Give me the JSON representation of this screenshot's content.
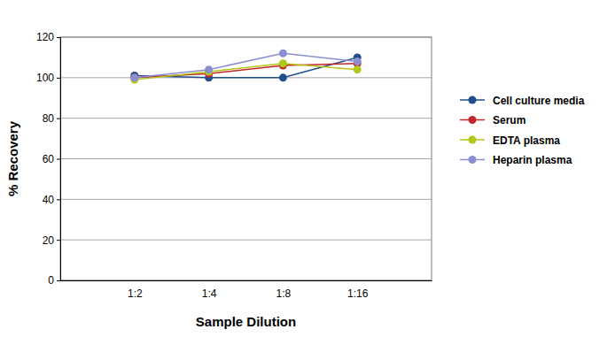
{
  "chart_data": {
    "type": "line",
    "x_label": "Sample Dilution",
    "y_label": "% Recovery",
    "categories": [
      "1:2",
      "1:4",
      "1:8",
      "1:16"
    ],
    "series": [
      {
        "name": "Cell culture media",
        "color": "#1f4e8c",
        "values": [
          101,
          100,
          100,
          110
        ]
      },
      {
        "name": "Serum",
        "color": "#c0282a",
        "values": [
          100,
          102,
          106,
          107
        ]
      },
      {
        "name": "EDTA plasma",
        "color": "#b5c61a",
        "values": [
          99,
          103,
          107,
          104
        ]
      },
      {
        "name": "Heparin plasma",
        "color": "#8b8fd0",
        "values": [
          100,
          104,
          112,
          108
        ]
      }
    ],
    "ylim": [
      0,
      120
    ],
    "yticks": [
      0,
      20,
      40,
      60,
      80,
      100,
      120
    ],
    "grid": true,
    "legend": "right",
    "marker": "circle"
  }
}
